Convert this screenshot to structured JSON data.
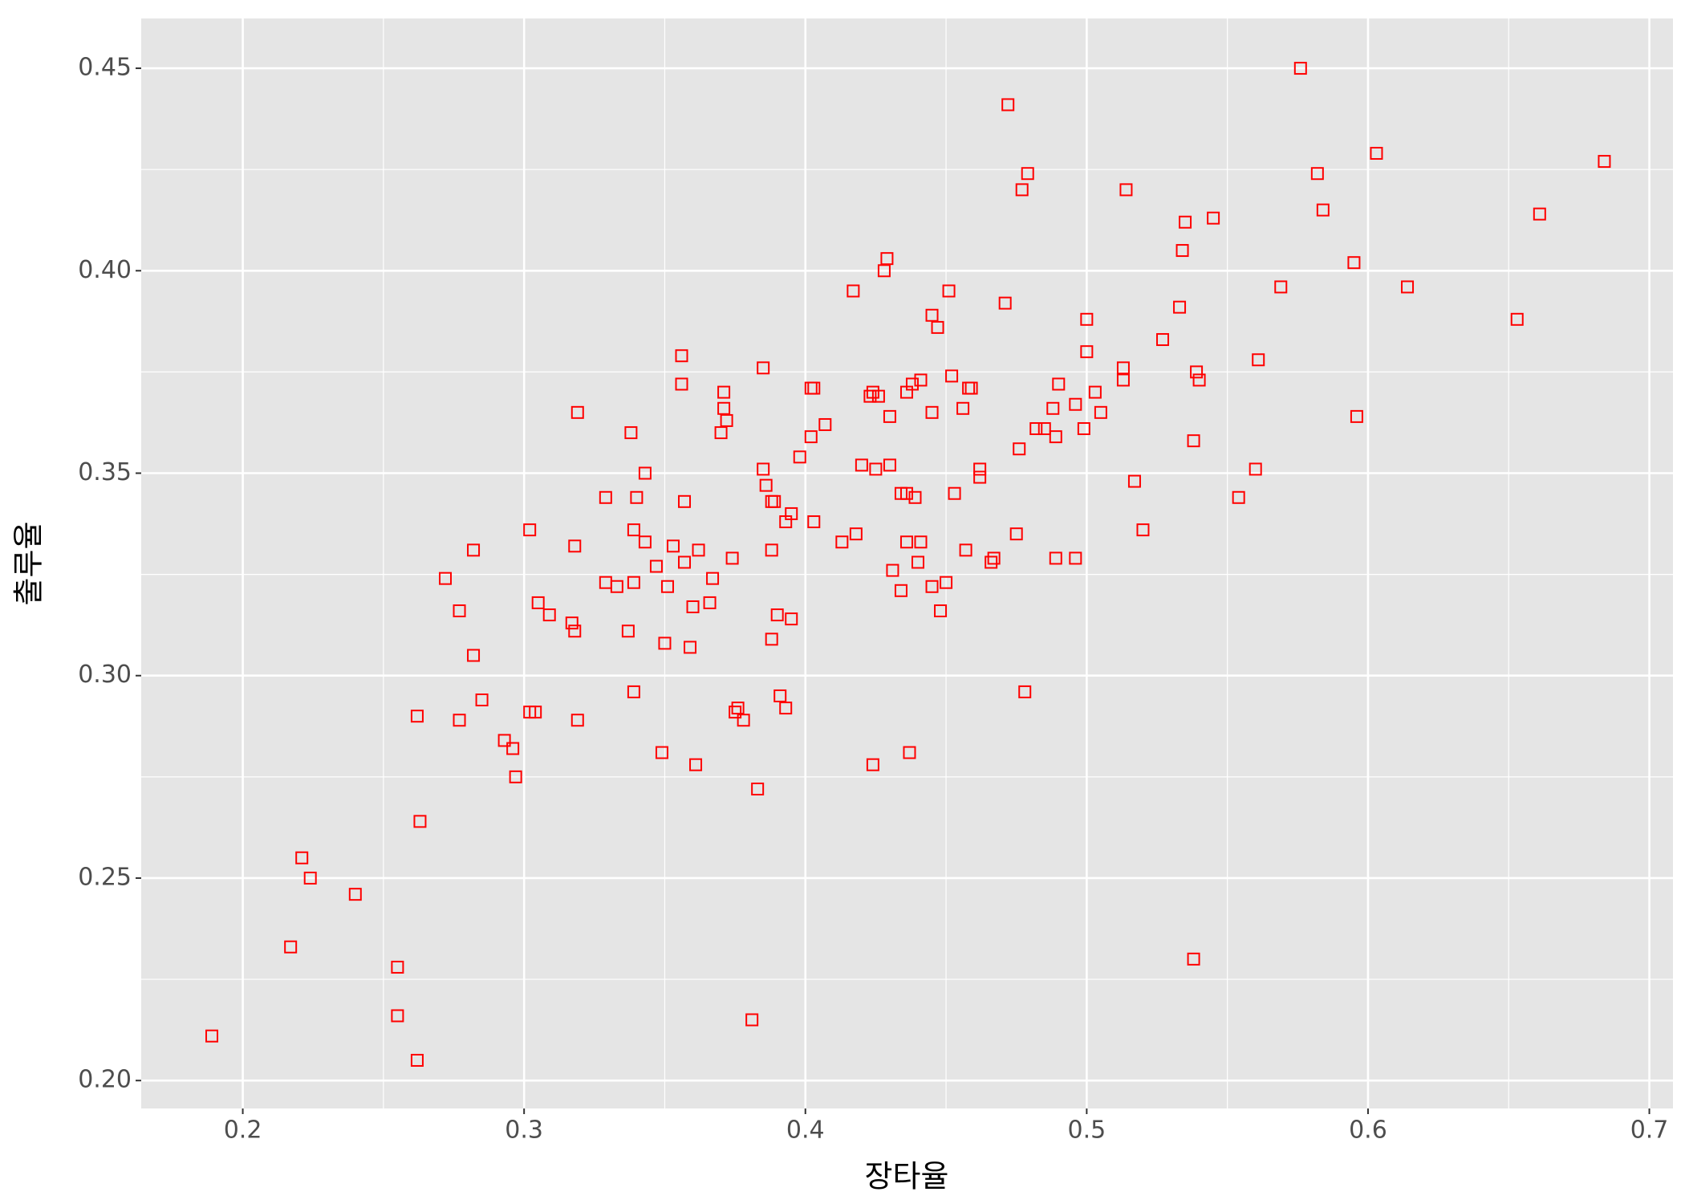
{
  "chart_data": {
    "type": "scatter",
    "xlabel": "장타율",
    "ylabel": "출루율",
    "color": "#ff0000",
    "marker": "open-square",
    "grid": true,
    "xlim": [
      0.1639,
      0.7084
    ],
    "ylim": [
      0.1931,
      0.4623
    ],
    "xticks": [
      0.2,
      0.3,
      0.4,
      0.5,
      0.6,
      0.7
    ],
    "yticks": [
      {
        "value": 0.2,
        "label": "0.20"
      },
      {
        "value": 0.25,
        "label": "0.25"
      },
      {
        "value": 0.3,
        "label": "0.30"
      },
      {
        "value": 0.35,
        "label": "0.35"
      },
      {
        "value": 0.4,
        "label": "0.40"
      },
      {
        "value": 0.45,
        "label": "0.45"
      }
    ],
    "x": [
      0.189,
      0.217,
      0.221,
      0.224,
      0.24,
      0.255,
      0.255,
      0.262,
      0.262,
      0.263,
      0.272,
      0.277,
      0.277,
      0.282,
      0.282,
      0.285,
      0.293,
      0.296,
      0.297,
      0.302,
      0.302,
      0.304,
      0.305,
      0.309,
      0.317,
      0.318,
      0.318,
      0.319,
      0.319,
      0.329,
      0.329,
      0.333,
      0.337,
      0.338,
      0.339,
      0.339,
      0.339,
      0.34,
      0.343,
      0.343,
      0.347,
      0.349,
      0.35,
      0.351,
      0.353,
      0.356,
      0.356,
      0.357,
      0.357,
      0.359,
      0.36,
      0.361,
      0.362,
      0.366,
      0.367,
      0.37,
      0.371,
      0.371,
      0.372,
      0.374,
      0.375,
      0.376,
      0.378,
      0.381,
      0.383,
      0.385,
      0.385,
      0.386,
      0.388,
      0.388,
      0.388,
      0.389,
      0.39,
      0.391,
      0.393,
      0.393,
      0.395,
      0.395,
      0.398,
      0.402,
      0.402,
      0.403,
      0.403,
      0.407,
      0.413,
      0.417,
      0.418,
      0.42,
      0.423,
      0.424,
      0.424,
      0.425,
      0.426,
      0.428,
      0.429,
      0.43,
      0.43,
      0.431,
      0.434,
      0.434,
      0.436,
      0.436,
      0.436,
      0.437,
      0.438,
      0.439,
      0.44,
      0.441,
      0.441,
      0.445,
      0.445,
      0.445,
      0.447,
      0.448,
      0.45,
      0.451,
      0.452,
      0.453,
      0.456,
      0.457,
      0.458,
      0.459,
      0.462,
      0.462,
      0.466,
      0.467,
      0.471,
      0.472,
      0.475,
      0.476,
      0.477,
      0.478,
      0.479,
      0.482,
      0.485,
      0.488,
      0.489,
      0.489,
      0.49,
      0.496,
      0.496,
      0.499,
      0.5,
      0.5,
      0.503,
      0.505,
      0.513,
      0.513,
      0.514,
      0.517,
      0.52,
      0.527,
      0.533,
      0.534,
      0.535,
      0.538,
      0.538,
      0.539,
      0.54,
      0.545,
      0.554,
      0.56,
      0.561,
      0.569,
      0.576,
      0.582,
      0.584,
      0.595,
      0.596,
      0.603,
      0.614,
      0.653,
      0.661,
      0.684
    ],
    "y": [
      0.211,
      0.233,
      0.255,
      0.25,
      0.246,
      0.228,
      0.216,
      0.205,
      0.29,
      0.264,
      0.324,
      0.316,
      0.289,
      0.331,
      0.305,
      0.294,
      0.284,
      0.282,
      0.275,
      0.336,
      0.291,
      0.291,
      0.318,
      0.315,
      0.313,
      0.311,
      0.332,
      0.365,
      0.289,
      0.344,
      0.323,
      0.322,
      0.311,
      0.36,
      0.336,
      0.323,
      0.296,
      0.344,
      0.35,
      0.333,
      0.327,
      0.281,
      0.308,
      0.322,
      0.332,
      0.379,
      0.372,
      0.343,
      0.328,
      0.307,
      0.317,
      0.278,
      0.331,
      0.318,
      0.324,
      0.36,
      0.37,
      0.366,
      0.363,
      0.329,
      0.291,
      0.292,
      0.289,
      0.215,
      0.272,
      0.376,
      0.351,
      0.347,
      0.343,
      0.331,
      0.309,
      0.343,
      0.315,
      0.295,
      0.338,
      0.292,
      0.34,
      0.314,
      0.354,
      0.359,
      0.371,
      0.371,
      0.338,
      0.362,
      0.333,
      0.395,
      0.335,
      0.352,
      0.369,
      0.37,
      0.278,
      0.351,
      0.369,
      0.4,
      0.403,
      0.364,
      0.352,
      0.326,
      0.321,
      0.345,
      0.37,
      0.345,
      0.333,
      0.281,
      0.372,
      0.344,
      0.328,
      0.373,
      0.333,
      0.389,
      0.365,
      0.322,
      0.386,
      0.316,
      0.323,
      0.395,
      0.374,
      0.345,
      0.366,
      0.331,
      0.371,
      0.371,
      0.351,
      0.349,
      0.328,
      0.329,
      0.392,
      0.441,
      0.335,
      0.356,
      0.42,
      0.296,
      0.424,
      0.361,
      0.361,
      0.366,
      0.359,
      0.329,
      0.372,
      0.367,
      0.329,
      0.361,
      0.388,
      0.38,
      0.37,
      0.365,
      0.376,
      0.373,
      0.42,
      0.348,
      0.336,
      0.383,
      0.391,
      0.405,
      0.412,
      0.23,
      0.358,
      0.375,
      0.373,
      0.413,
      0.344,
      0.351,
      0.378,
      0.396,
      0.45,
      0.424,
      0.415,
      0.402,
      0.364,
      0.429,
      0.396,
      0.388,
      0.414,
      0.427
    ]
  }
}
